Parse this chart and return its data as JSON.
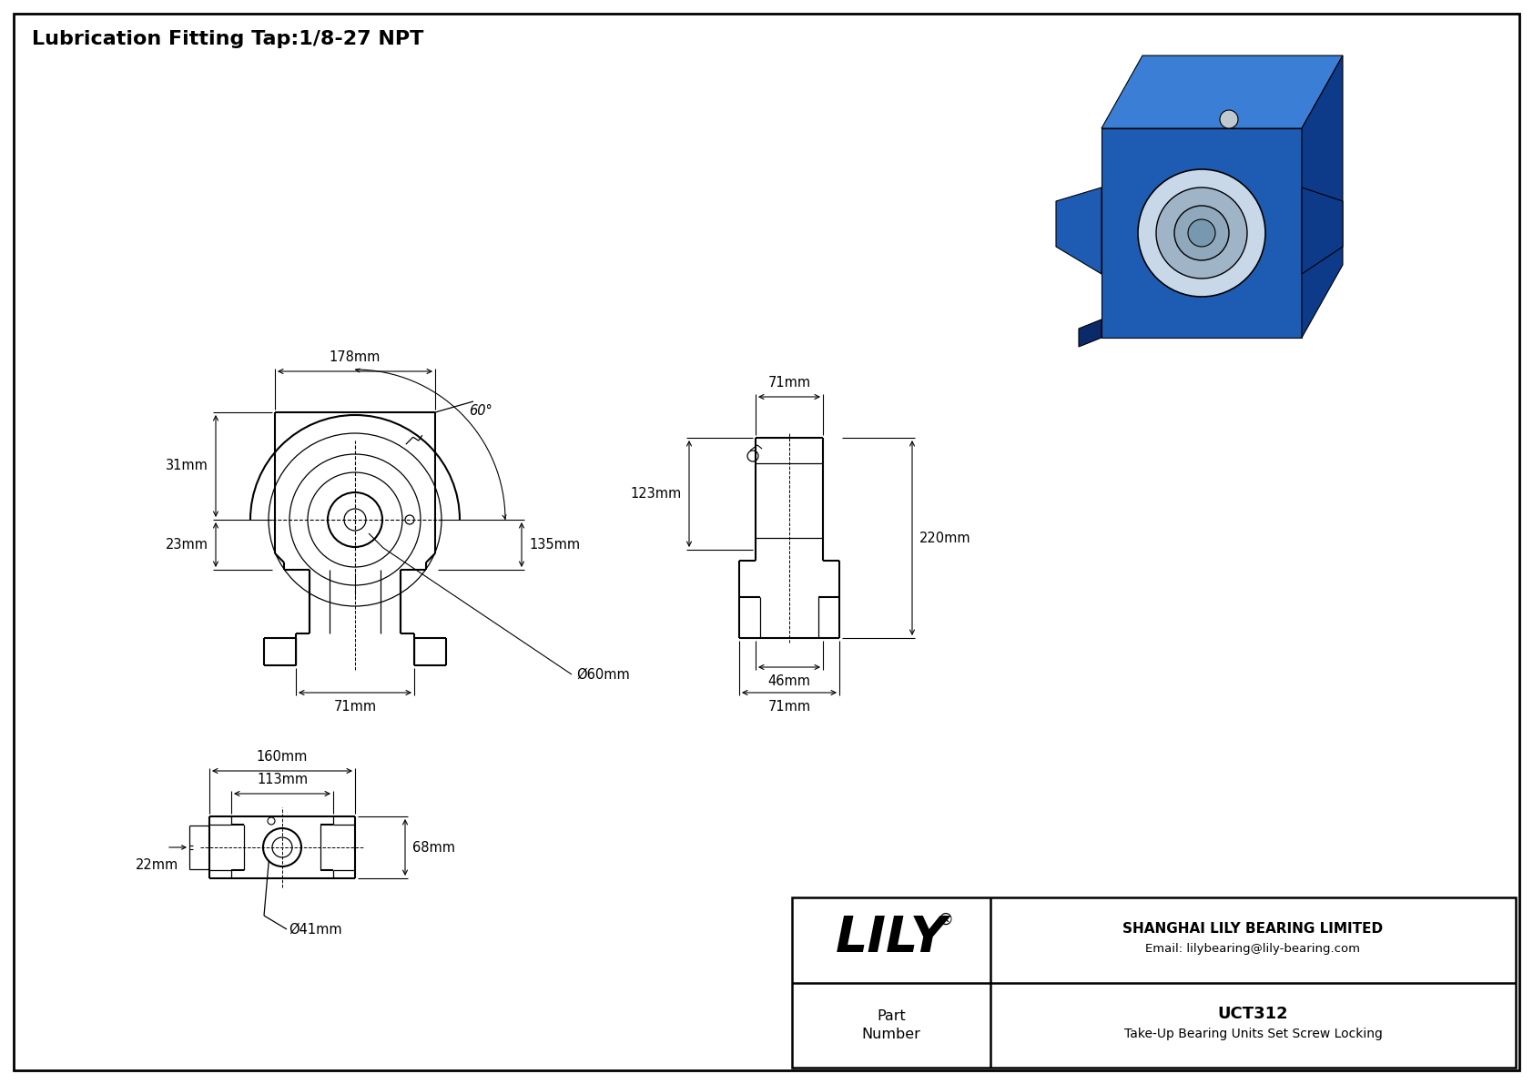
{
  "title": "Lubrication Fitting Tap:1/8-27 NPT",
  "bg_color": "#ffffff",
  "title_fontsize": 16,
  "dim_fontsize": 10.5,
  "company": "SHANGHAI LILY BEARING LIMITED",
  "email": "Email: lilybearing@lily-bearing.com",
  "part_label": "Part\nNumber",
  "part_number": "UCT312",
  "part_desc": "Take-Up Bearing Units Set Screw Locking",
  "brand": "LILY",
  "dims": {
    "width_top": "178mm",
    "height_right": "135mm",
    "bore_dia": "Ø60mm",
    "left_h1": "31mm",
    "left_h2": "23mm",
    "bottom_w": "71mm",
    "side_total": "220mm",
    "side_top": "123mm",
    "side_bot1": "46mm",
    "side_bot2": "71mm",
    "side_width": "71mm",
    "front_w1": "160mm",
    "front_w2": "113mm",
    "front_h": "68mm",
    "front_dia": "Ø41mm",
    "front_left": "22mm",
    "angle": "60°"
  },
  "iso_front_color": "#1e5cb3",
  "iso_top_color": "#3a7fd5",
  "iso_right_color": "#0e3a8a",
  "iso_dark_color": "#0a2a6a"
}
